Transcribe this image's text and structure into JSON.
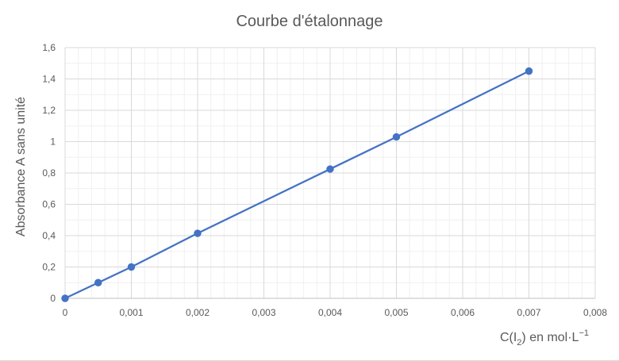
{
  "chart_data": {
    "type": "scatter",
    "title": "Courbe d'étalonnage",
    "xlabel": {
      "prefix": "C(I",
      "subscript": "2",
      "suffix": ") en mol·L",
      "superscript": "−1"
    },
    "ylabel": "Absorbance A sans unité",
    "xlim": [
      0,
      0.008
    ],
    "ylim": [
      0,
      1.6
    ],
    "x_major_step": 0.001,
    "y_major_step": 0.2,
    "x_minor_divisions": 5,
    "y_minor_divisions": 2,
    "grid": true,
    "x_tick_labels": [
      "0",
      "0,001",
      "0,002",
      "0,003",
      "0,004",
      "0,005",
      "0,006",
      "0,007",
      "0,008"
    ],
    "y_tick_labels": [
      "0",
      "0,2",
      "0,4",
      "0,6",
      "0,8",
      "1",
      "1,2",
      "1,4",
      "1,6"
    ],
    "series": [
      {
        "x": [
          0,
          0.0005,
          0.001,
          0.002,
          0.004,
          0.005,
          0.007
        ],
        "y": [
          0,
          0.1,
          0.2,
          0.415,
          0.825,
          1.03,
          1.45
        ],
        "color": "#4472c4"
      }
    ]
  }
}
